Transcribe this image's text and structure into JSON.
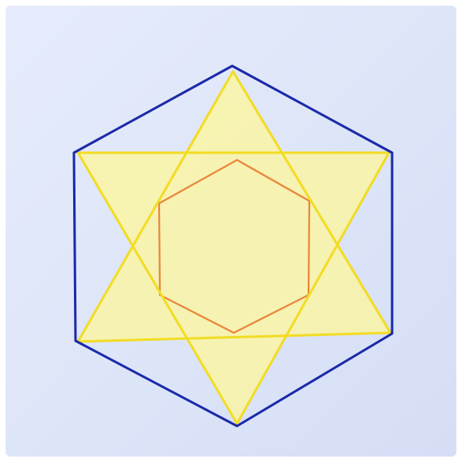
{
  "colors": {
    "background": "#dde5f8",
    "outer_hexagon": "#1a2aa8",
    "star_outline": "#f2dc24",
    "star_fill": "#fff79a",
    "inner_hexagon": "#e8863a"
  },
  "shapes": {
    "outer_hexagon": "hexagon",
    "star": "six-pointed-star",
    "inner_hexagon": "hexagon"
  }
}
